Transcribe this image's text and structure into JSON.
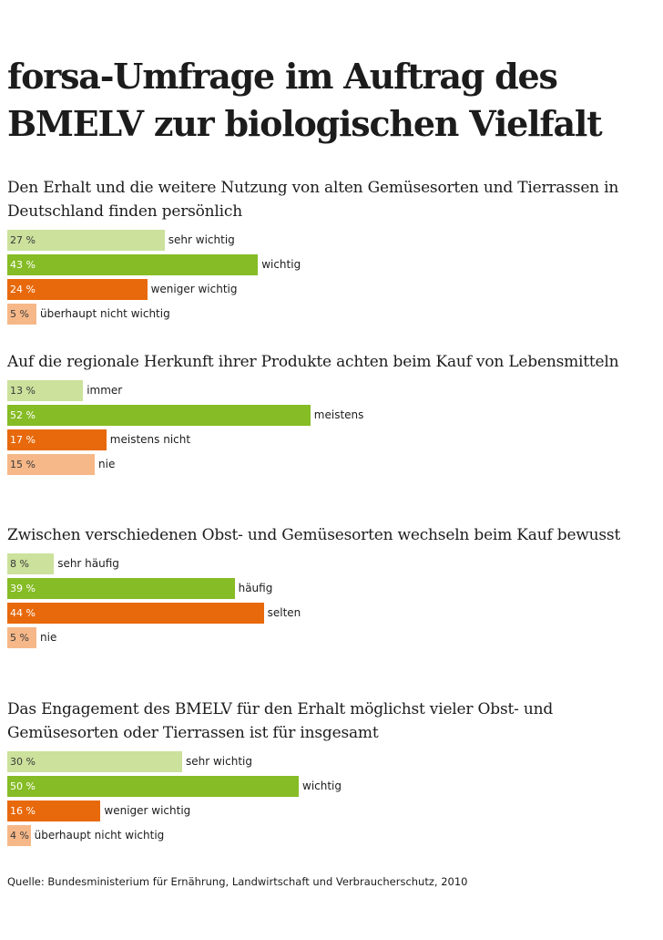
{
  "title": "forsa-Umfrage im Auftrag des BMELV zur biologischen Vielfalt",
  "source": "Quelle: Bundesministerium für Ernährung, Landwirtschaft und Verbraucherschutz, 2010",
  "colors": [
    "#cbe19c",
    "#86bc25",
    "#e8690b",
    "#f6b888"
  ],
  "chart_data": [
    {
      "type": "bar",
      "title": "Den Erhalt und die weitere Nutzung von alten Gemüsesorten und Tierrassen in Deutschland finden persönlich",
      "categories": [
        "sehr wichtig",
        "wichtig",
        "weniger wichtig",
        "überhaupt nicht wichtig"
      ],
      "values": [
        27,
        43,
        24,
        5
      ],
      "value_labels": [
        "27 %",
        "43 %",
        "24 %",
        "5 %"
      ],
      "unit": "%"
    },
    {
      "type": "bar",
      "title": "Auf die regionale Herkunft ihrer Produkte achten beim Kauf von Lebensmitteln",
      "categories": [
        "immer",
        "meistens",
        "meistens nicht",
        "nie"
      ],
      "values": [
        13,
        52,
        17,
        15
      ],
      "value_labels": [
        "13 %",
        "52 %",
        "17 %",
        "15 %"
      ],
      "unit": "%"
    },
    {
      "type": "bar",
      "title": "Zwischen verschiedenen Obst- und Gemüsesorten wechseln beim Kauf bewusst",
      "categories": [
        "sehr häufig",
        "häufig",
        "selten",
        "nie"
      ],
      "values": [
        8,
        39,
        44,
        5
      ],
      "value_labels": [
        "8 %",
        "39 %",
        "44 %",
        "5 %"
      ],
      "unit": "%"
    },
    {
      "type": "bar",
      "title": "Das Engagement des BMELV für den Erhalt möglichst vieler Obst- und Gemüsesorten oder Tierrassen ist für insgesamt",
      "categories": [
        "sehr wichtig",
        "wichtig",
        "weniger wichtig",
        "überhaupt nicht wichtig"
      ],
      "values": [
        30,
        50,
        16,
        4
      ],
      "value_labels": [
        "30 %",
        "50 %",
        "16 %",
        "4 %"
      ],
      "unit": "%"
    }
  ]
}
